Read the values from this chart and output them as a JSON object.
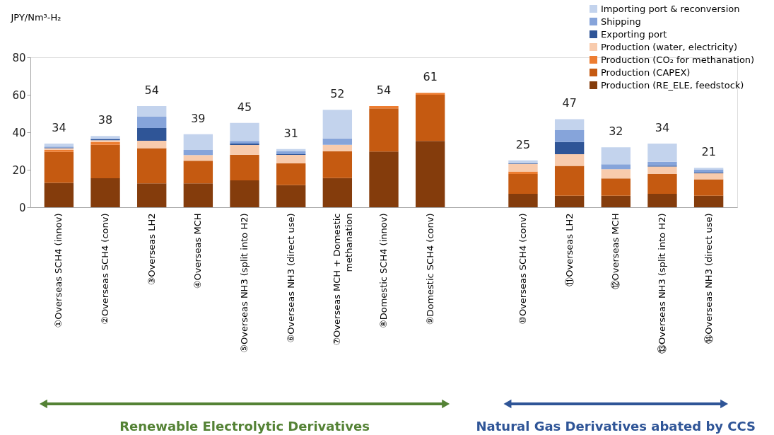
{
  "chart_data": {
    "type": "bar",
    "stacked": true,
    "ylabel": "JPY/Nm³-H₂",
    "categories": [
      "①Overseas SCH4 (innov)",
      "②Overseas SCH4 (conv)",
      "③Overseas LH2",
      "④Overseas MCH",
      "⑤Overseas NH3 (split into H2)",
      "⑥Overseas NH3 (direct use)",
      "⑦Overseas MCH + Domestic methanation",
      "⑧Domestic SCH4 (innov)",
      "⑨Domestic SCH4 (conv)",
      null,
      "⑩Overseas SCH4 (conv)",
      "⑪Overseas LH2",
      "⑫Overseas MCH",
      "⑬Overseas NH3 (split into H2)",
      "⑭Overseas NH3 (direct use)"
    ],
    "series": [
      {
        "name": "Production (RE_ELE, feedstock)",
        "color": "#843c0c",
        "values": [
          13,
          15.5,
          12.7,
          12.7,
          14.3,
          11.8,
          15.6,
          29.7,
          35.4,
          null,
          7.2,
          6.1,
          6.1,
          7.2,
          6.1
        ]
      },
      {
        "name": "Production (CAPEX)",
        "color": "#c55a11",
        "values": [
          16.5,
          17.8,
          18.8,
          12.1,
          13.7,
          11.6,
          14.3,
          23.0,
          24.6,
          null,
          10.5,
          16.0,
          9.3,
          10.5,
          8.8
        ]
      },
      {
        "name": "Production (CO₂ for methanation)",
        "color": "#ed7d31",
        "values": [
          1.2,
          1.5,
          0,
          0,
          0,
          0,
          0,
          1.3,
          1.0,
          null,
          1.4,
          0,
          0,
          0,
          0
        ]
      },
      {
        "name": "Production (water, electricity)",
        "color": "#f8cbad",
        "values": [
          0.8,
          1.0,
          4.0,
          3.0,
          5.2,
          4.5,
          3.4,
          0,
          0,
          null,
          4.0,
          6.2,
          4.9,
          4.0,
          3.2
        ]
      },
      {
        "name": "Exporting port",
        "color": "#2f5597",
        "values": [
          0.4,
          0.4,
          6.8,
          0,
          0.8,
          0.4,
          0,
          0,
          0,
          null,
          0.4,
          6.5,
          0,
          0.5,
          0.5
        ]
      },
      {
        "name": "Shipping",
        "color": "#86a4da",
        "values": [
          0.5,
          0.5,
          6.0,
          2.8,
          1.4,
          1.5,
          3.4,
          0,
          0,
          null,
          0,
          6.3,
          2.6,
          2.0,
          1.6
        ]
      },
      {
        "name": "Importing port & reconversion",
        "color": "#c3d3ed",
        "values": [
          1.6,
          1.3,
          5.7,
          8.4,
          9.6,
          1.2,
          15.3,
          0,
          0,
          null,
          1.5,
          5.9,
          9.1,
          9.8,
          0.8
        ]
      }
    ],
    "totals": [
      "34",
      "38",
      "54",
      "39",
      "45",
      "31",
      "52",
      "54",
      "61",
      null,
      "25",
      "47",
      "32",
      "34",
      "21"
    ],
    "ylim": [
      0,
      80
    ],
    "yticks": [
      0,
      20,
      40,
      60,
      80
    ],
    "grid": false,
    "legend": "top right",
    "annotations": [
      "Renewable Electrolytic Derivatives",
      "Natural Gas Derivatives abated by CCS"
    ]
  }
}
